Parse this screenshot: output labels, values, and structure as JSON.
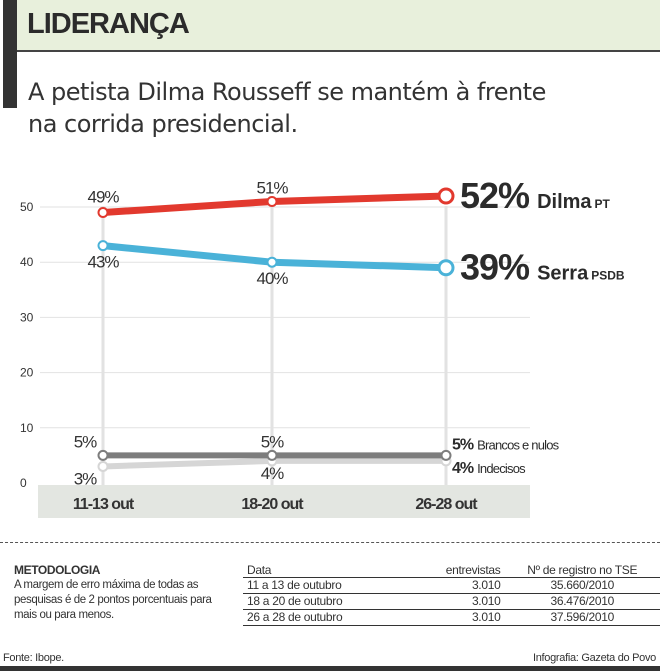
{
  "header": {
    "title": "LIDERANÇA",
    "subtitle_line1": "A petista Dilma Rousseff se mantém à frente",
    "subtitle_line2": "na corrida presidencial."
  },
  "chart_data": {
    "type": "line",
    "categories": [
      "11-13 out",
      "18-20 out",
      "26-28 out"
    ],
    "ylim": [
      0,
      55
    ],
    "yticks": [
      0,
      10,
      20,
      30,
      40,
      50
    ],
    "grid": true,
    "series": [
      {
        "name": "Dilma",
        "party": "PT",
        "values": [
          49,
          51,
          52
        ],
        "labels": [
          "49%",
          "51%",
          ""
        ],
        "end_label": "52%",
        "color": "#e2392e"
      },
      {
        "name": "Serra",
        "party": "PSDB",
        "values": [
          43,
          40,
          39
        ],
        "labels": [
          "43%",
          "40%",
          ""
        ],
        "end_label": "39%",
        "color": "#4ab2d8"
      },
      {
        "name": "Brancos e nulos",
        "party": "",
        "values": [
          5,
          5,
          5
        ],
        "labels": [
          "5%",
          "5%",
          ""
        ],
        "end_label": "5%",
        "color": "#7d7d7d"
      },
      {
        "name": "Indecisos",
        "party": "",
        "values": [
          3,
          4,
          4
        ],
        "labels": [
          "3%",
          "4%",
          ""
        ],
        "end_label": "4%",
        "color": "#d6d6d6"
      }
    ]
  },
  "methodology": {
    "title": "METODOLOGIA",
    "text": "A margem de erro máxima de todas as pesquisas é de 2 pontos porcentuais para mais ou para menos.",
    "table": {
      "headers": [
        "Data",
        "entrevistas",
        "Nº de registro no TSE"
      ],
      "rows": [
        [
          "11 a 13 de outubro",
          "3.010",
          "35.660/2010"
        ],
        [
          "18 a 20 de outubro",
          "3.010",
          "36.476/2010"
        ],
        [
          "26 a 28 de outubro",
          "3.010",
          "37.596/2010"
        ]
      ]
    }
  },
  "footer": {
    "source": "Fonte: Ibope.",
    "credit": "Infografia: Gazeta do Povo"
  }
}
